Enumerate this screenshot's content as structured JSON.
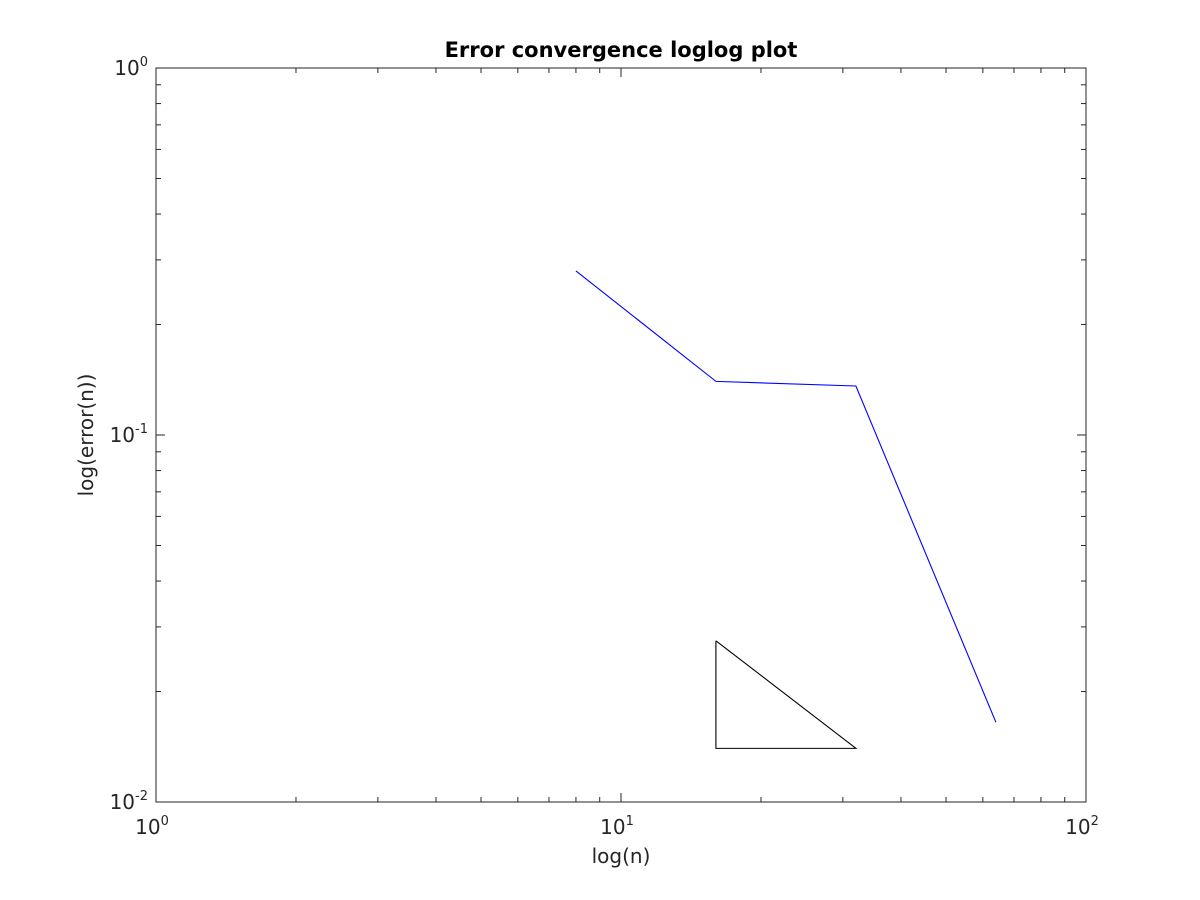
{
  "chart_data": {
    "type": "line",
    "title": "Error convergence loglog plot",
    "xlabel": "log(n)",
    "ylabel": "log(error(n))",
    "xscale": "log",
    "yscale": "log",
    "xlim": [
      1,
      100
    ],
    "ylim": [
      0.01,
      1
    ],
    "grid": false,
    "legend": "none",
    "x_ticks": [
      {
        "base": "10",
        "exp": "0",
        "value": 1
      },
      {
        "base": "10",
        "exp": "1",
        "value": 10
      },
      {
        "base": "10",
        "exp": "2",
        "value": 100
      }
    ],
    "y_ticks": [
      {
        "base": "10",
        "exp": "-2",
        "value": 0.01
      },
      {
        "base": "10",
        "exp": "-1",
        "value": 0.1
      },
      {
        "base": "10",
        "exp": "0",
        "value": 1
      }
    ],
    "series": [
      {
        "color": "#0000ff",
        "x": [
          8,
          16,
          32,
          64
        ],
        "y": [
          0.28,
          0.14,
          0.136,
          0.0165
        ]
      },
      {
        "color": "#000000",
        "x": [
          16,
          16,
          32,
          16
        ],
        "y": [
          0.0275,
          0.014,
          0.014,
          0.0275
        ]
      }
    ]
  }
}
